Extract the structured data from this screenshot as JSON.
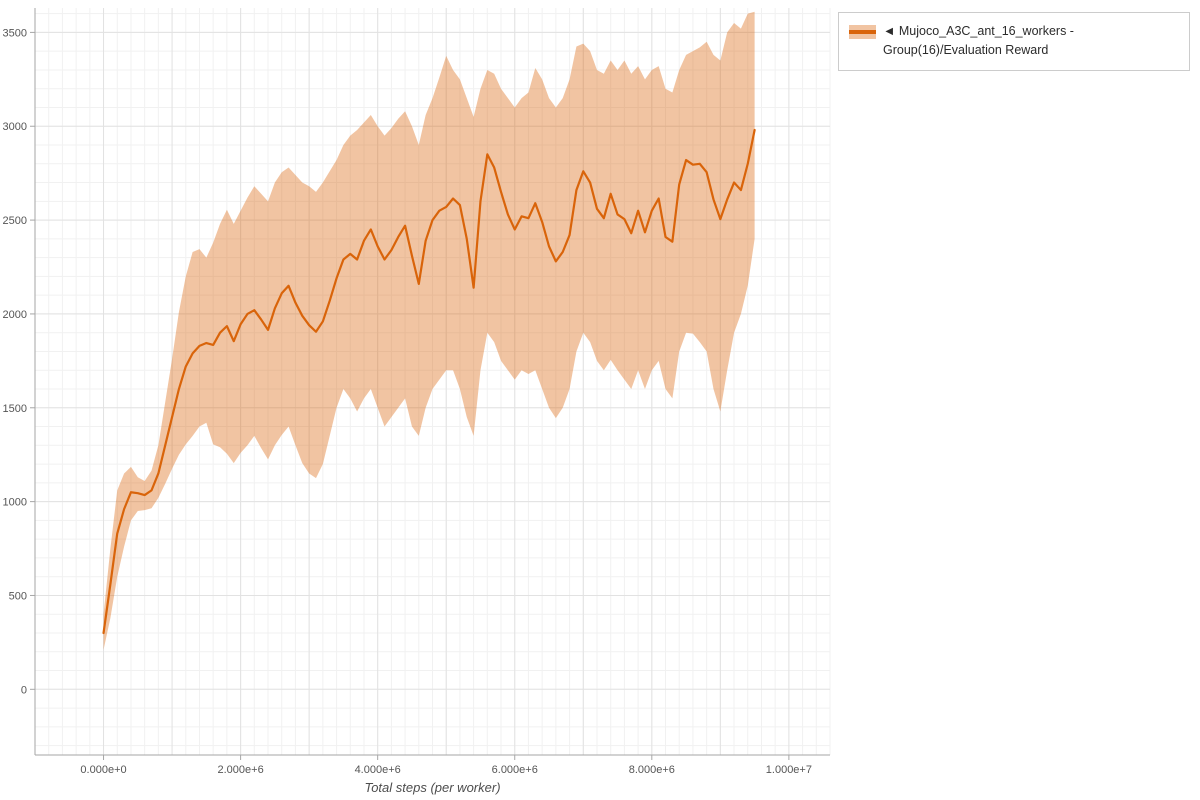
{
  "chart_data": {
    "type": "line",
    "title": "",
    "xlabel": "Total steps (per worker)",
    "ylabel": "",
    "xlim_millions": [
      -1.0,
      10.6
    ],
    "ylim": [
      -350,
      3630
    ],
    "x_unit": 1000000,
    "grid": {
      "show": true,
      "x_major_step_millions": 1.0,
      "x_minor_step_millions": 0.2,
      "y_major_step": 500,
      "y_minor_step": 100
    },
    "x_ticks": [
      {
        "v": 0,
        "label": "0.000e+0"
      },
      {
        "v": 2,
        "label": "2.000e+6"
      },
      {
        "v": 4,
        "label": "4.000e+6"
      },
      {
        "v": 6,
        "label": "6.000e+6"
      },
      {
        "v": 8,
        "label": "8.000e+6"
      },
      {
        "v": 10,
        "label": "1.000e+7"
      }
    ],
    "y_ticks": [
      {
        "v": 0,
        "label": "0"
      },
      {
        "v": 500,
        "label": "500"
      },
      {
        "v": 1000,
        "label": "1000"
      },
      {
        "v": 1500,
        "label": "1500"
      },
      {
        "v": 2000,
        "label": "2000"
      },
      {
        "v": 2500,
        "label": "2500"
      },
      {
        "v": 3000,
        "label": "3000"
      },
      {
        "v": 3500,
        "label": "3500"
      }
    ],
    "legend": {
      "marker": "◄",
      "label": "Mujoco_A3C_ant_16_workers - Group(16)/Evaluation Reward",
      "position": "top-right-outside"
    },
    "colors": {
      "line": "#d9640a",
      "band": "rgba(217,100,10,0.38)",
      "grid_major": "#e2e2e2",
      "grid_minor": "#f1f1f1",
      "axis": "#a6a6a6",
      "tick_label": "#555555"
    },
    "series": [
      {
        "name": "Mujoco_A3C_ant_16_workers - Group(16)/Evaluation Reward",
        "points_format": [
          "x_millions",
          "mean",
          "lower",
          "upper"
        ],
        "points": [
          [
            0.0,
            300,
            210,
            400
          ],
          [
            0.1,
            560,
            380,
            750
          ],
          [
            0.2,
            830,
            600,
            1060
          ],
          [
            0.3,
            960,
            760,
            1150
          ],
          [
            0.4,
            1050,
            900,
            1185
          ],
          [
            0.5,
            1045,
            950,
            1130
          ],
          [
            0.6,
            1035,
            955,
            1110
          ],
          [
            0.7,
            1060,
            965,
            1165
          ],
          [
            0.8,
            1150,
            1020,
            1300
          ],
          [
            0.9,
            1300,
            1095,
            1530
          ],
          [
            1.0,
            1450,
            1175,
            1760
          ],
          [
            1.1,
            1600,
            1250,
            2010
          ],
          [
            1.2,
            1720,
            1305,
            2200
          ],
          [
            1.3,
            1790,
            1350,
            2330
          ],
          [
            1.4,
            1830,
            1400,
            2345
          ],
          [
            1.5,
            1845,
            1420,
            2300
          ],
          [
            1.6,
            1835,
            1305,
            2380
          ],
          [
            1.7,
            1900,
            1290,
            2480
          ],
          [
            1.8,
            1935,
            1255,
            2555
          ],
          [
            1.9,
            1855,
            1205,
            2480
          ],
          [
            2.0,
            1945,
            1260,
            2550
          ],
          [
            2.1,
            2000,
            1300,
            2620
          ],
          [
            2.2,
            2020,
            1350,
            2680
          ],
          [
            2.3,
            1970,
            1285,
            2640
          ],
          [
            2.4,
            1915,
            1225,
            2600
          ],
          [
            2.5,
            2030,
            1300,
            2700
          ],
          [
            2.6,
            2110,
            1355,
            2755
          ],
          [
            2.7,
            2150,
            1400,
            2780
          ],
          [
            2.8,
            2060,
            1300,
            2740
          ],
          [
            2.9,
            1990,
            1205,
            2700
          ],
          [
            3.0,
            1940,
            1150,
            2680
          ],
          [
            3.1,
            1905,
            1125,
            2650
          ],
          [
            3.2,
            1960,
            1200,
            2700
          ],
          [
            3.3,
            2070,
            1350,
            2760
          ],
          [
            3.4,
            2190,
            1500,
            2820
          ],
          [
            3.5,
            2290,
            1600,
            2900
          ],
          [
            3.6,
            2320,
            1550,
            2950
          ],
          [
            3.7,
            2290,
            1480,
            2980
          ],
          [
            3.8,
            2390,
            1550,
            3020
          ],
          [
            3.9,
            2450,
            1600,
            3060
          ],
          [
            4.0,
            2360,
            1500,
            3000
          ],
          [
            4.1,
            2290,
            1400,
            2950
          ],
          [
            4.2,
            2340,
            1450,
            2990
          ],
          [
            4.3,
            2410,
            1500,
            3040
          ],
          [
            4.4,
            2470,
            1550,
            3080
          ],
          [
            4.5,
            2310,
            1400,
            3000
          ],
          [
            4.6,
            2160,
            1350,
            2900
          ],
          [
            4.7,
            2390,
            1500,
            3060
          ],
          [
            4.8,
            2500,
            1600,
            3150
          ],
          [
            4.9,
            2550,
            1650,
            3260
          ],
          [
            5.0,
            2570,
            1700,
            3375
          ],
          [
            5.1,
            2615,
            1700,
            3300
          ],
          [
            5.2,
            2580,
            1600,
            3250
          ],
          [
            5.3,
            2400,
            1450,
            3150
          ],
          [
            5.4,
            2140,
            1350,
            3050
          ],
          [
            5.5,
            2600,
            1700,
            3200
          ],
          [
            5.6,
            2850,
            1900,
            3300
          ],
          [
            5.7,
            2780,
            1850,
            3280
          ],
          [
            5.8,
            2650,
            1750,
            3200
          ],
          [
            5.9,
            2530,
            1700,
            3150
          ],
          [
            6.0,
            2450,
            1650,
            3100
          ],
          [
            6.1,
            2520,
            1700,
            3150
          ],
          [
            6.2,
            2510,
            1680,
            3180
          ],
          [
            6.3,
            2590,
            1700,
            3310
          ],
          [
            6.4,
            2490,
            1600,
            3250
          ],
          [
            6.5,
            2360,
            1500,
            3150
          ],
          [
            6.6,
            2280,
            1445,
            3100
          ],
          [
            6.7,
            2330,
            1500,
            3150
          ],
          [
            6.8,
            2420,
            1600,
            3250
          ],
          [
            6.9,
            2660,
            1800,
            3425
          ],
          [
            7.0,
            2760,
            1900,
            3440
          ],
          [
            7.1,
            2700,
            1850,
            3400
          ],
          [
            7.2,
            2560,
            1750,
            3300
          ],
          [
            7.3,
            2510,
            1700,
            3280
          ],
          [
            7.4,
            2640,
            1755,
            3350
          ],
          [
            7.5,
            2530,
            1700,
            3300
          ],
          [
            7.6,
            2505,
            1650,
            3350
          ],
          [
            7.7,
            2430,
            1600,
            3280
          ],
          [
            7.8,
            2550,
            1700,
            3320
          ],
          [
            7.9,
            2435,
            1600,
            3250
          ],
          [
            8.0,
            2550,
            1700,
            3300
          ],
          [
            8.1,
            2615,
            1750,
            3320
          ],
          [
            8.2,
            2410,
            1600,
            3200
          ],
          [
            8.3,
            2385,
            1550,
            3180
          ],
          [
            8.4,
            2690,
            1800,
            3300
          ],
          [
            8.5,
            2820,
            1900,
            3380
          ],
          [
            8.6,
            2795,
            1895,
            3400
          ],
          [
            8.7,
            2800,
            1850,
            3420
          ],
          [
            8.8,
            2755,
            1800,
            3450
          ],
          [
            8.9,
            2610,
            1600,
            3380
          ],
          [
            9.0,
            2505,
            1480,
            3350
          ],
          [
            9.1,
            2610,
            1700,
            3500
          ],
          [
            9.2,
            2700,
            1900,
            3550
          ],
          [
            9.3,
            2660,
            2000,
            3520
          ],
          [
            9.4,
            2800,
            2150,
            3600
          ],
          [
            9.5,
            2980,
            2400,
            3610
          ]
        ]
      }
    ]
  }
}
